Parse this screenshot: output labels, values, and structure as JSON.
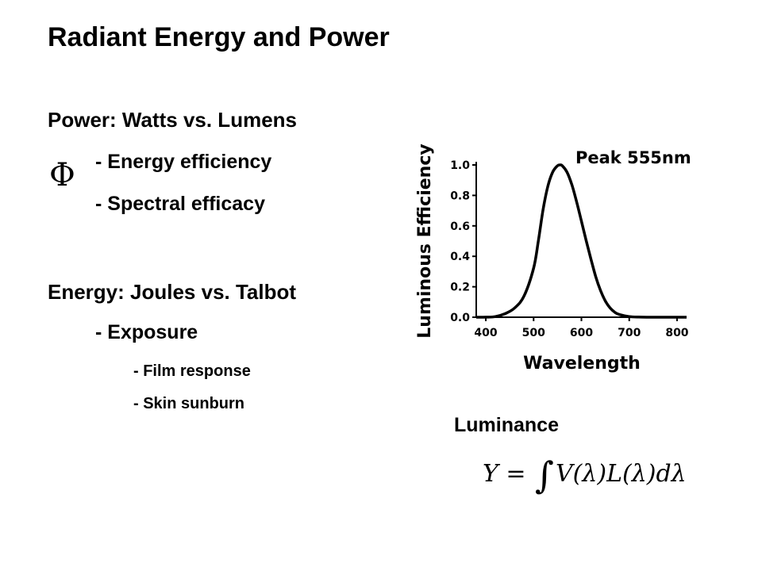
{
  "slide": {
    "title": "Radiant Energy and Power",
    "power_heading": "Power: Watts vs. Lumens",
    "power_items": [
      "- Energy efficiency",
      "- Spectral efficacy"
    ],
    "phi_symbol": "Φ",
    "energy_heading": "Energy: Joules vs. Talbot",
    "energy_item": "- Exposure",
    "energy_subitems": [
      "- Film response",
      "- Skin sunburn"
    ],
    "luminance_label": "Luminance",
    "formula": {
      "lhs": "Y",
      "equals": "=",
      "integral": "∫",
      "rhs": "V(λ)L(λ)dλ"
    }
  },
  "chart_data": {
    "type": "line",
    "title": "",
    "annotation": "Peak 555nm",
    "xlabel": "Wavelength",
    "ylabel": "Luminous Efficiency",
    "xlim": [
      380,
      820
    ],
    "ylim": [
      0,
      1.0
    ],
    "x_ticks": [
      400,
      500,
      600,
      700,
      800
    ],
    "y_ticks": [
      "0.0",
      "0.2",
      "0.4",
      "0.6",
      "0.8",
      "1.0"
    ],
    "series": [
      {
        "x": [
          380,
          400,
          420,
          440,
          460,
          480,
          500,
          510,
          520,
          530,
          540,
          550,
          555,
          560,
          570,
          580,
          590,
          600,
          610,
          620,
          630,
          640,
          650,
          660,
          670,
          680,
          700,
          720,
          740,
          760,
          780,
          800,
          820
        ],
        "values": [
          0.0,
          0.0004,
          0.004,
          0.023,
          0.06,
          0.139,
          0.323,
          0.503,
          0.71,
          0.862,
          0.954,
          0.995,
          1.0,
          0.995,
          0.952,
          0.87,
          0.757,
          0.631,
          0.503,
          0.381,
          0.265,
          0.175,
          0.107,
          0.061,
          0.032,
          0.017,
          0.004,
          0.001,
          0.0,
          0.0,
          0.0,
          0.0,
          0.0
        ]
      }
    ],
    "grid": false,
    "axis_color": "#000000",
    "line_color": "#000000"
  }
}
